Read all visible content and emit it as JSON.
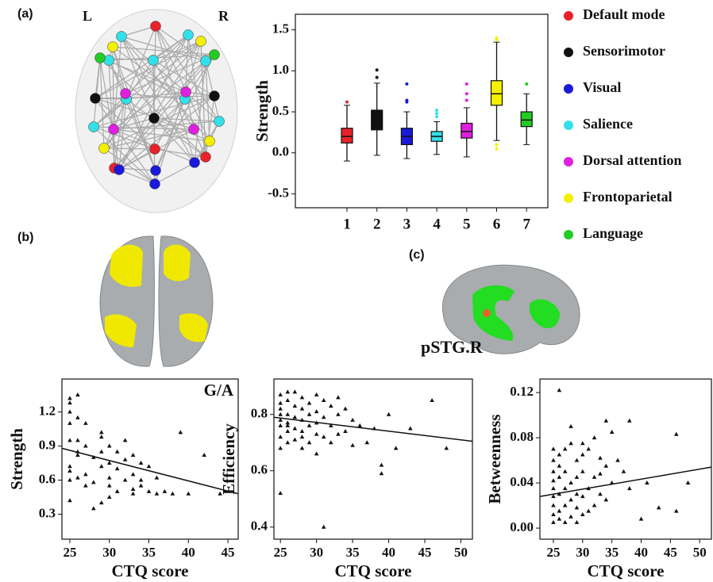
{
  "labels": {
    "a": "(a)",
    "b": "(b)",
    "c": "(c)",
    "left": "L",
    "right": "R",
    "region": "pSTG.R"
  },
  "chart_data": [
    {
      "type": "box",
      "ylabel": "Strength",
      "categories": [
        "1",
        "2",
        "3",
        "4",
        "5",
        "6",
        "7"
      ],
      "ylim": [
        -0.67,
        1.69
      ],
      "yticks": [
        -0.5,
        {
          "value": 0,
          "label": "0.0"
        },
        0.5,
        {
          "value": 1,
          "label": "1.0"
        },
        1.5
      ],
      "series": [
        {
          "name": "Default mode",
          "color": "#e8222b",
          "whisker_low": -0.1,
          "q1": 0.12,
          "median": 0.2,
          "q3": 0.3,
          "whisker_high": 0.58,
          "outliers": [
            0.62
          ]
        },
        {
          "name": "Sensorimotor",
          "color": "#111111",
          "whisker_low": -0.03,
          "q1": 0.28,
          "median": 0.4,
          "q3": 0.52,
          "whisker_high": 0.85,
          "outliers": [
            0.92,
            1.01
          ]
        },
        {
          "name": "Visual",
          "color": "#1a1adb",
          "whisker_low": -0.07,
          "q1": 0.1,
          "median": 0.2,
          "q3": 0.3,
          "whisker_high": 0.5,
          "outliers": [
            0.62,
            0.64,
            0.84
          ]
        },
        {
          "name": "Salience",
          "color": "#33e0e8",
          "whisker_low": -0.02,
          "q1": 0.14,
          "median": 0.2,
          "q3": 0.26,
          "whisker_high": 0.38,
          "outliers": [
            0.44,
            0.48,
            0.52
          ]
        },
        {
          "name": "Dorsal attention",
          "color": "#e020e0",
          "whisker_low": -0.05,
          "q1": 0.18,
          "median": 0.26,
          "q3": 0.36,
          "whisker_high": 0.55,
          "outliers": [
            0.64,
            0.72,
            0.84
          ]
        },
        {
          "name": "Frontoparietal",
          "color": "#f5f000",
          "whisker_low": 0.15,
          "q1": 0.58,
          "median": 0.72,
          "q3": 0.88,
          "whisker_high": 1.35,
          "outliers": [
            0.05,
            0.1,
            1.38,
            1.4
          ]
        },
        {
          "name": "Language",
          "color": "#22cc22",
          "whisker_low": 0.1,
          "q1": 0.32,
          "median": 0.4,
          "q3": 0.5,
          "whisker_high": 0.72,
          "outliers": [
            0.84
          ]
        }
      ]
    },
    {
      "type": "scatter",
      "xlabel": "CTQ score",
      "ylabel": "Strength",
      "annotation": "G/A",
      "xlim": [
        24,
        46.3
      ],
      "xticks": [
        25,
        30,
        35,
        40,
        45
      ],
      "ylim": [
        0.08,
        1.49
      ],
      "yticks": [
        0.3,
        0.6,
        0.9,
        1.2
      ],
      "x": [
        25,
        25,
        25,
        25,
        25,
        25,
        25,
        25,
        25,
        26,
        26,
        26,
        26,
        26,
        27,
        27,
        27,
        27,
        28,
        28,
        29,
        29,
        29,
        29,
        29,
        30,
        30,
        30,
        30,
        31,
        31,
        31,
        32,
        32,
        32,
        33,
        33,
        33,
        34,
        34,
        34,
        35,
        35,
        36,
        36,
        37,
        38,
        39,
        40,
        42,
        44,
        26,
        28,
        30,
        33
      ],
      "y": [
        1.32,
        1.28,
        1.2,
        1.1,
        0.95,
        0.72,
        0.68,
        0.6,
        0.42,
        1.35,
        0.95,
        0.85,
        0.82,
        0.62,
        1.1,
        0.9,
        0.65,
        0.55,
        0.8,
        0.58,
        1.02,
        0.98,
        0.85,
        0.72,
        0.4,
        0.9,
        0.75,
        0.62,
        0.45,
        0.85,
        0.7,
        0.5,
        0.95,
        0.78,
        0.6,
        0.82,
        0.65,
        0.48,
        0.75,
        0.6,
        0.55,
        0.72,
        0.5,
        0.62,
        0.48,
        0.5,
        0.48,
        1.02,
        0.48,
        0.82,
        0.48,
        1.15,
        0.35,
        0.55,
        0.52
      ],
      "fit": {
        "x": [
          24,
          46.3
        ],
        "y": [
          0.88,
          0.48
        ]
      }
    },
    {
      "type": "scatter",
      "xlabel": "CTQ score",
      "ylabel": "Efficiency",
      "xlim": [
        24.1,
        51.6
      ],
      "xticks": [
        25,
        30,
        35,
        40,
        45,
        50
      ],
      "ylim": [
        0.357,
        0.926
      ],
      "yticks": [
        0.4,
        0.6,
        0.8
      ],
      "x": [
        25,
        25,
        25,
        25,
        25,
        25,
        25,
        25,
        26,
        26,
        26,
        26,
        26,
        26,
        27,
        27,
        27,
        27,
        27,
        28,
        28,
        28,
        28,
        28,
        29,
        29,
        29,
        29,
        30,
        30,
        30,
        30,
        30,
        31,
        31,
        31,
        32,
        32,
        32,
        33,
        33,
        34,
        34,
        35,
        35,
        36,
        37,
        38,
        39,
        39,
        40,
        41,
        43,
        46,
        48,
        25,
        31,
        26,
        28,
        33
      ],
      "y": [
        0.87,
        0.84,
        0.8,
        0.78,
        0.76,
        0.72,
        0.68,
        0.52,
        0.88,
        0.85,
        0.8,
        0.77,
        0.74,
        0.7,
        0.88,
        0.83,
        0.79,
        0.75,
        0.71,
        0.86,
        0.82,
        0.78,
        0.74,
        0.68,
        0.84,
        0.8,
        0.76,
        0.7,
        0.87,
        0.81,
        0.77,
        0.73,
        0.66,
        0.85,
        0.79,
        0.72,
        0.83,
        0.76,
        0.7,
        0.8,
        0.73,
        0.82,
        0.74,
        0.78,
        0.69,
        0.76,
        0.7,
        0.75,
        0.62,
        0.59,
        0.8,
        0.68,
        0.75,
        0.85,
        0.68,
        0.82,
        0.4,
        0.76,
        0.72,
        0.86
      ],
      "fit": {
        "x": [
          24.1,
          51.6
        ],
        "y": [
          0.79,
          0.705
        ]
      }
    },
    {
      "type": "scatter",
      "xlabel": "CTQ score",
      "ylabel": "Betweenness",
      "xlim": [
        22.7,
        52
      ],
      "xticks": [
        25,
        30,
        35,
        40,
        45,
        50
      ],
      "ylim": [
        -0.0098,
        0.132
      ],
      "yticks": [
        {
          "value": 0,
          "label": "0.00"
        },
        0.04,
        0.08,
        0.12
      ],
      "x": [
        25,
        25,
        25,
        25,
        25,
        25,
        25,
        25,
        26,
        26,
        26,
        26,
        26,
        26,
        27,
        27,
        27,
        27,
        27,
        28,
        28,
        28,
        28,
        29,
        29,
        29,
        29,
        29,
        30,
        30,
        30,
        30,
        31,
        31,
        31,
        32,
        32,
        32,
        33,
        33,
        34,
        34,
        34,
        35,
        35,
        36,
        37,
        38,
        38,
        40,
        41,
        43,
        46,
        46,
        48,
        26,
        28,
        30,
        33,
        25
      ],
      "y": [
        0.005,
        0.012,
        0.02,
        0.028,
        0.035,
        0.042,
        0.05,
        0.06,
        0.122,
        0.065,
        0.045,
        0.03,
        0.015,
        0.008,
        0.07,
        0.05,
        0.035,
        0.02,
        0.005,
        0.075,
        0.04,
        0.025,
        0.01,
        0.06,
        0.045,
        0.03,
        0.018,
        0.005,
        0.065,
        0.05,
        0.028,
        0.012,
        0.07,
        0.035,
        0.015,
        0.08,
        0.045,
        0.02,
        0.062,
        0.03,
        0.095,
        0.055,
        0.025,
        0.085,
        0.04,
        0.06,
        0.05,
        0.095,
        0.035,
        0.008,
        0.04,
        0.018,
        0.083,
        0.015,
        0.04,
        0.055,
        0.09,
        0.075,
        0.048,
        0.07
      ],
      "fit": {
        "x": [
          22.7,
          52
        ],
        "y": [
          0.028,
          0.054
        ]
      }
    }
  ]
}
